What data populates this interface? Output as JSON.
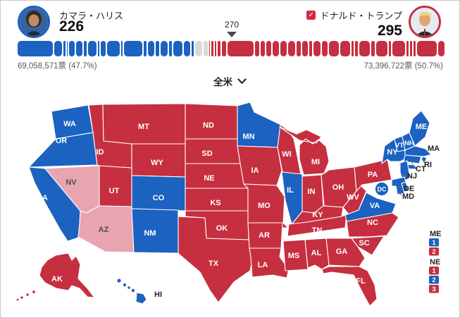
{
  "colors": {
    "dem": "#1b62c1",
    "rep": "#c62f40",
    "leaning_rep": "#e8a4b0",
    "undecided": "#d9d9d9",
    "marker": "#4a4a4a",
    "callout_text": "#222222",
    "dark_state_label": "#4d4d4d"
  },
  "header": {
    "harris": {
      "name": "カマラ・ハリス",
      "ev": "226"
    },
    "trump": {
      "name": "ドナルド・トランプ",
      "ev": "295",
      "check": "✓"
    },
    "threshold": "270"
  },
  "bar": {
    "harris_votes": "69,058,571票 (47.7%)",
    "trump_votes": "73,396,722票 (50.7%)",
    "total_ev": 538,
    "harris_segments": [
      54,
      12,
      3,
      1,
      8,
      10,
      4,
      13,
      3,
      7,
      19,
      3,
      28,
      4,
      10,
      5,
      11,
      4,
      14,
      10,
      3
    ],
    "undecided_segments": [
      11,
      6
    ],
    "trump_segments": [
      1,
      3,
      3,
      4,
      6,
      40,
      7,
      6,
      8,
      9,
      10,
      11,
      6,
      9,
      4,
      11,
      8,
      16,
      15,
      3,
      4,
      16,
      6,
      17,
      3,
      19,
      4,
      3,
      3,
      30,
      10
    ]
  },
  "region_selector": {
    "label": "全米"
  },
  "map": {
    "states": [
      {
        "abbr": "WA",
        "party": "dem",
        "label": "on"
      },
      {
        "abbr": "OR",
        "party": "dem",
        "label": "on"
      },
      {
        "abbr": "CA",
        "party": "dem",
        "label": "on"
      },
      {
        "abbr": "NV",
        "party": "leaning_rep",
        "label": "dark-on"
      },
      {
        "abbr": "UT",
        "party": "rep",
        "label": "on"
      },
      {
        "abbr": "AZ",
        "party": "leaning_rep",
        "label": "dark-on"
      },
      {
        "abbr": "ID",
        "party": "rep",
        "label": "on"
      },
      {
        "abbr": "MT",
        "party": "rep",
        "label": "on"
      },
      {
        "abbr": "WY",
        "party": "rep",
        "label": "on"
      },
      {
        "abbr": "CO",
        "party": "dem",
        "label": "on"
      },
      {
        "abbr": "NM",
        "party": "dem",
        "label": "on"
      },
      {
        "abbr": "ND",
        "party": "rep",
        "label": "on"
      },
      {
        "abbr": "SD",
        "party": "rep",
        "label": "on"
      },
      {
        "abbr": "NE",
        "party": "rep",
        "label": "on"
      },
      {
        "abbr": "KS",
        "party": "rep",
        "label": "on"
      },
      {
        "abbr": "OK",
        "party": "rep",
        "label": "on"
      },
      {
        "abbr": "TX",
        "party": "rep",
        "label": "on"
      },
      {
        "abbr": "MN",
        "party": "dem",
        "label": "on"
      },
      {
        "abbr": "IA",
        "party": "rep",
        "label": "on"
      },
      {
        "abbr": "MO",
        "party": "rep",
        "label": "on"
      },
      {
        "abbr": "AR",
        "party": "rep",
        "label": "on"
      },
      {
        "abbr": "LA",
        "party": "rep",
        "label": "on"
      },
      {
        "abbr": "WI",
        "party": "rep",
        "label": "on"
      },
      {
        "abbr": "IL",
        "party": "dem",
        "label": "on"
      },
      {
        "abbr": "IN",
        "party": "rep",
        "label": "on"
      },
      {
        "abbr": "MI",
        "party": "rep",
        "label": "on"
      },
      {
        "abbr": "OH",
        "party": "rep",
        "label": "on"
      },
      {
        "abbr": "KY",
        "party": "rep",
        "label": "on"
      },
      {
        "abbr": "TN",
        "party": "rep",
        "label": "on"
      },
      {
        "abbr": "WV",
        "party": "rep",
        "label": "on"
      },
      {
        "abbr": "PA",
        "party": "rep",
        "label": "on"
      },
      {
        "abbr": "VA",
        "party": "dem",
        "label": "on"
      },
      {
        "abbr": "NC",
        "party": "rep",
        "label": "on"
      },
      {
        "abbr": "SC",
        "party": "rep",
        "label": "on"
      },
      {
        "abbr": "GA",
        "party": "rep",
        "label": "on"
      },
      {
        "abbr": "AL",
        "party": "rep",
        "label": "on"
      },
      {
        "abbr": "MS",
        "party": "rep",
        "label": "on"
      },
      {
        "abbr": "FL",
        "party": "rep",
        "label": "on"
      },
      {
        "abbr": "NY",
        "party": "dem",
        "label": "on"
      },
      {
        "abbr": "VT",
        "party": "dem",
        "label": "on"
      },
      {
        "abbr": "NH",
        "party": "dem",
        "label": "on"
      },
      {
        "abbr": "ME",
        "party": "dem",
        "label": "on"
      },
      {
        "abbr": "MA",
        "party": "dem",
        "label": "out"
      },
      {
        "abbr": "RI",
        "party": "dem",
        "label": "out"
      },
      {
        "abbr": "CT",
        "party": "dem",
        "label": "out"
      },
      {
        "abbr": "NJ",
        "party": "dem",
        "label": "out"
      },
      {
        "abbr": "DE",
        "party": "dem",
        "label": "out"
      },
      {
        "abbr": "MD",
        "party": "dem",
        "label": "out"
      },
      {
        "abbr": "DC",
        "party": "dem",
        "label": "circle"
      },
      {
        "abbr": "AK",
        "party": "rep",
        "label": "on"
      },
      {
        "abbr": "HI",
        "party": "dem",
        "label": "out"
      }
    ],
    "district_legend": [
      {
        "label": "ME",
        "boxes": [
          {
            "n": "1",
            "party": "dem"
          },
          {
            "n": "2",
            "party": "rep"
          }
        ]
      },
      {
        "label": "NE",
        "boxes": [
          {
            "n": "1",
            "party": "rep"
          },
          {
            "n": "2",
            "party": "dem"
          },
          {
            "n": "3",
            "party": "rep"
          }
        ]
      }
    ]
  }
}
